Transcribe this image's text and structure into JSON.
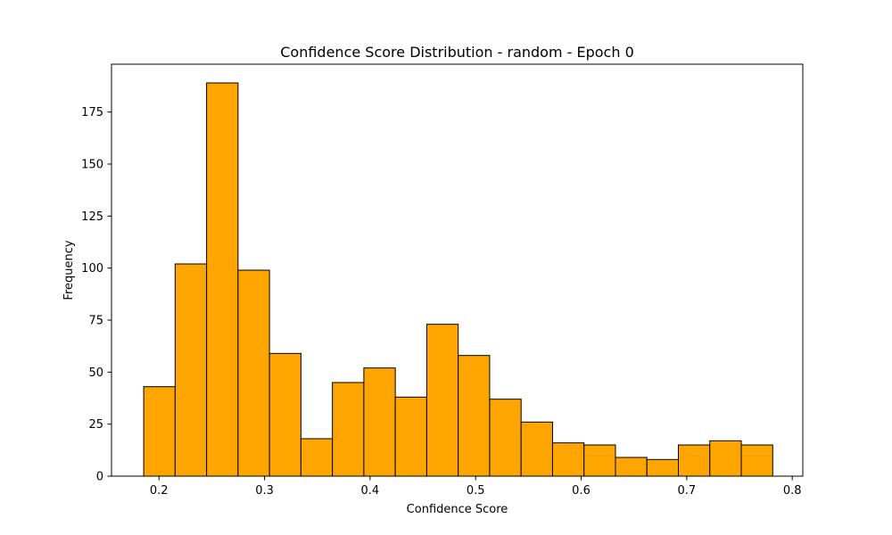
{
  "chart_data": {
    "type": "bar",
    "title": "Confidence Score Distribution - random - Epoch 0",
    "xlabel": "Confidence Score",
    "ylabel": "Frequency",
    "xlim": [
      0.155,
      0.81
    ],
    "ylim": [
      0,
      198
    ],
    "xticks": [
      0.2,
      0.3,
      0.4,
      0.5,
      0.6,
      0.7,
      0.8
    ],
    "xtick_labels": [
      "0.2",
      "0.3",
      "0.4",
      "0.5",
      "0.6",
      "0.7",
      "0.8"
    ],
    "yticks": [
      0,
      25,
      50,
      75,
      100,
      125,
      150,
      175
    ],
    "ytick_labels": [
      "0",
      "25",
      "50",
      "75",
      "100",
      "125",
      "150",
      "175"
    ],
    "grid": false,
    "bar_color": "#FFA500",
    "edge_color": "#000000",
    "bins": [
      {
        "start": 0.1855,
        "end": 0.2153,
        "count": 43
      },
      {
        "start": 0.2153,
        "end": 0.2451,
        "count": 102
      },
      {
        "start": 0.2451,
        "end": 0.2749,
        "count": 189
      },
      {
        "start": 0.2749,
        "end": 0.3047,
        "count": 99
      },
      {
        "start": 0.3047,
        "end": 0.3345,
        "count": 59
      },
      {
        "start": 0.3345,
        "end": 0.3643,
        "count": 18
      },
      {
        "start": 0.3643,
        "end": 0.3941,
        "count": 45
      },
      {
        "start": 0.3941,
        "end": 0.4239,
        "count": 52
      },
      {
        "start": 0.4239,
        "end": 0.4537,
        "count": 38
      },
      {
        "start": 0.4537,
        "end": 0.4835,
        "count": 73
      },
      {
        "start": 0.4835,
        "end": 0.5133,
        "count": 58
      },
      {
        "start": 0.5133,
        "end": 0.5431,
        "count": 37
      },
      {
        "start": 0.5431,
        "end": 0.5729,
        "count": 26
      },
      {
        "start": 0.5729,
        "end": 0.6027,
        "count": 16
      },
      {
        "start": 0.6027,
        "end": 0.6325,
        "count": 15
      },
      {
        "start": 0.6325,
        "end": 0.6623,
        "count": 9
      },
      {
        "start": 0.6623,
        "end": 0.6921,
        "count": 8
      },
      {
        "start": 0.6921,
        "end": 0.7219,
        "count": 15
      },
      {
        "start": 0.7219,
        "end": 0.7517,
        "count": 17
      },
      {
        "start": 0.7517,
        "end": 0.7815,
        "count": 15
      }
    ]
  }
}
